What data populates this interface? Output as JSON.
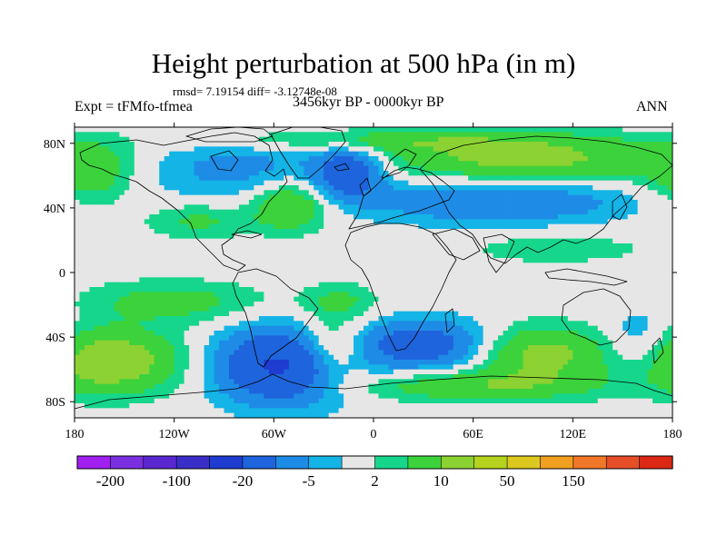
{
  "title": "Height perturbation at 500 hPa (in m)",
  "subtitle_stats": "rmsd= 7.19154 diff= -3.12748e-08",
  "experiment": "Expt = tFMfo-tfmea",
  "period": "3456kyr BP - 0000kyr BP",
  "season": "ANN",
  "map": {
    "lon_ticks": [
      "180",
      "120W",
      "60W",
      "0",
      "60E",
      "120E",
      "180"
    ],
    "lat_ticks": [
      "80N",
      "40N",
      "0",
      "40S",
      "80S"
    ],
    "neutral_color": "#e6e6e6"
  },
  "colorbar": {
    "colors": [
      "#a020f0",
      "#7a30e0",
      "#5a28d0",
      "#3a2ec8",
      "#1e3cd0",
      "#1e64dc",
      "#1e8ce6",
      "#14b4e6",
      "#e6e6e6",
      "#16d68c",
      "#3cd23c",
      "#8cd232",
      "#b4d21e",
      "#dcc81e",
      "#f0a01e",
      "#f07828",
      "#e64e28",
      "#dc2814"
    ],
    "labels": [
      "-200",
      "-100",
      "-20",
      "-5",
      "2",
      "10",
      "50",
      "150"
    ]
  },
  "chart_data": {
    "type": "heatmap",
    "title": "Height perturbation at 500 hPa (in m)",
    "x_range": [
      -180,
      180
    ],
    "y_range": [
      -90,
      90
    ],
    "xlabel": "",
    "ylabel": "",
    "contour_levels": [
      -200,
      -150,
      -100,
      -50,
      -20,
      -10,
      -5,
      -2,
      2,
      5,
      10,
      20,
      50,
      100,
      150,
      200
    ],
    "features": [
      {
        "lon": -55,
        "lat": -58,
        "value": -22,
        "sx": 28,
        "sy": 16
      },
      {
        "lon": 30,
        "lat": -45,
        "value": -15,
        "sx": 28,
        "sy": 11
      },
      {
        "lon": -160,
        "lat": -55,
        "value": 15,
        "sx": 32,
        "sy": 14
      },
      {
        "lon": -25,
        "lat": -48,
        "value": 12,
        "sx": 14,
        "sy": 13
      },
      {
        "lon": 100,
        "lat": -50,
        "value": 12,
        "sx": 28,
        "sy": 12
      },
      {
        "lon": 60,
        "lat": -70,
        "value": 9,
        "sx": 55,
        "sy": 7
      },
      {
        "lon": 160,
        "lat": -45,
        "value": -7,
        "sx": 14,
        "sy": 16
      },
      {
        "lon": -120,
        "lat": -18,
        "value": 7,
        "sx": 38,
        "sy": 9
      },
      {
        "lon": -20,
        "lat": -18,
        "value": 6,
        "sx": 16,
        "sy": 8
      },
      {
        "lon": -75,
        "lat": 65,
        "value": -7,
        "sx": 48,
        "sy": 14
      },
      {
        "lon": -15,
        "lat": 62,
        "value": -15,
        "sx": 14,
        "sy": 11
      },
      {
        "lon": -50,
        "lat": 42,
        "value": 12,
        "sx": 16,
        "sy": 11
      },
      {
        "lon": -105,
        "lat": 32,
        "value": 6,
        "sx": 22,
        "sy": 8
      },
      {
        "lon": 90,
        "lat": 70,
        "value": 12,
        "sx": 65,
        "sy": 10
      },
      {
        "lon": 75,
        "lat": 44,
        "value": -10,
        "sx": 55,
        "sy": 10
      },
      {
        "lon": 110,
        "lat": 15,
        "value": 4,
        "sx": 40,
        "sy": 7
      },
      {
        "lon": -170,
        "lat": 60,
        "value": 8,
        "sx": 18,
        "sy": 14
      },
      {
        "lon": 0,
        "lat": 82,
        "value": 7,
        "sx": 80,
        "sy": 5
      }
    ]
  }
}
